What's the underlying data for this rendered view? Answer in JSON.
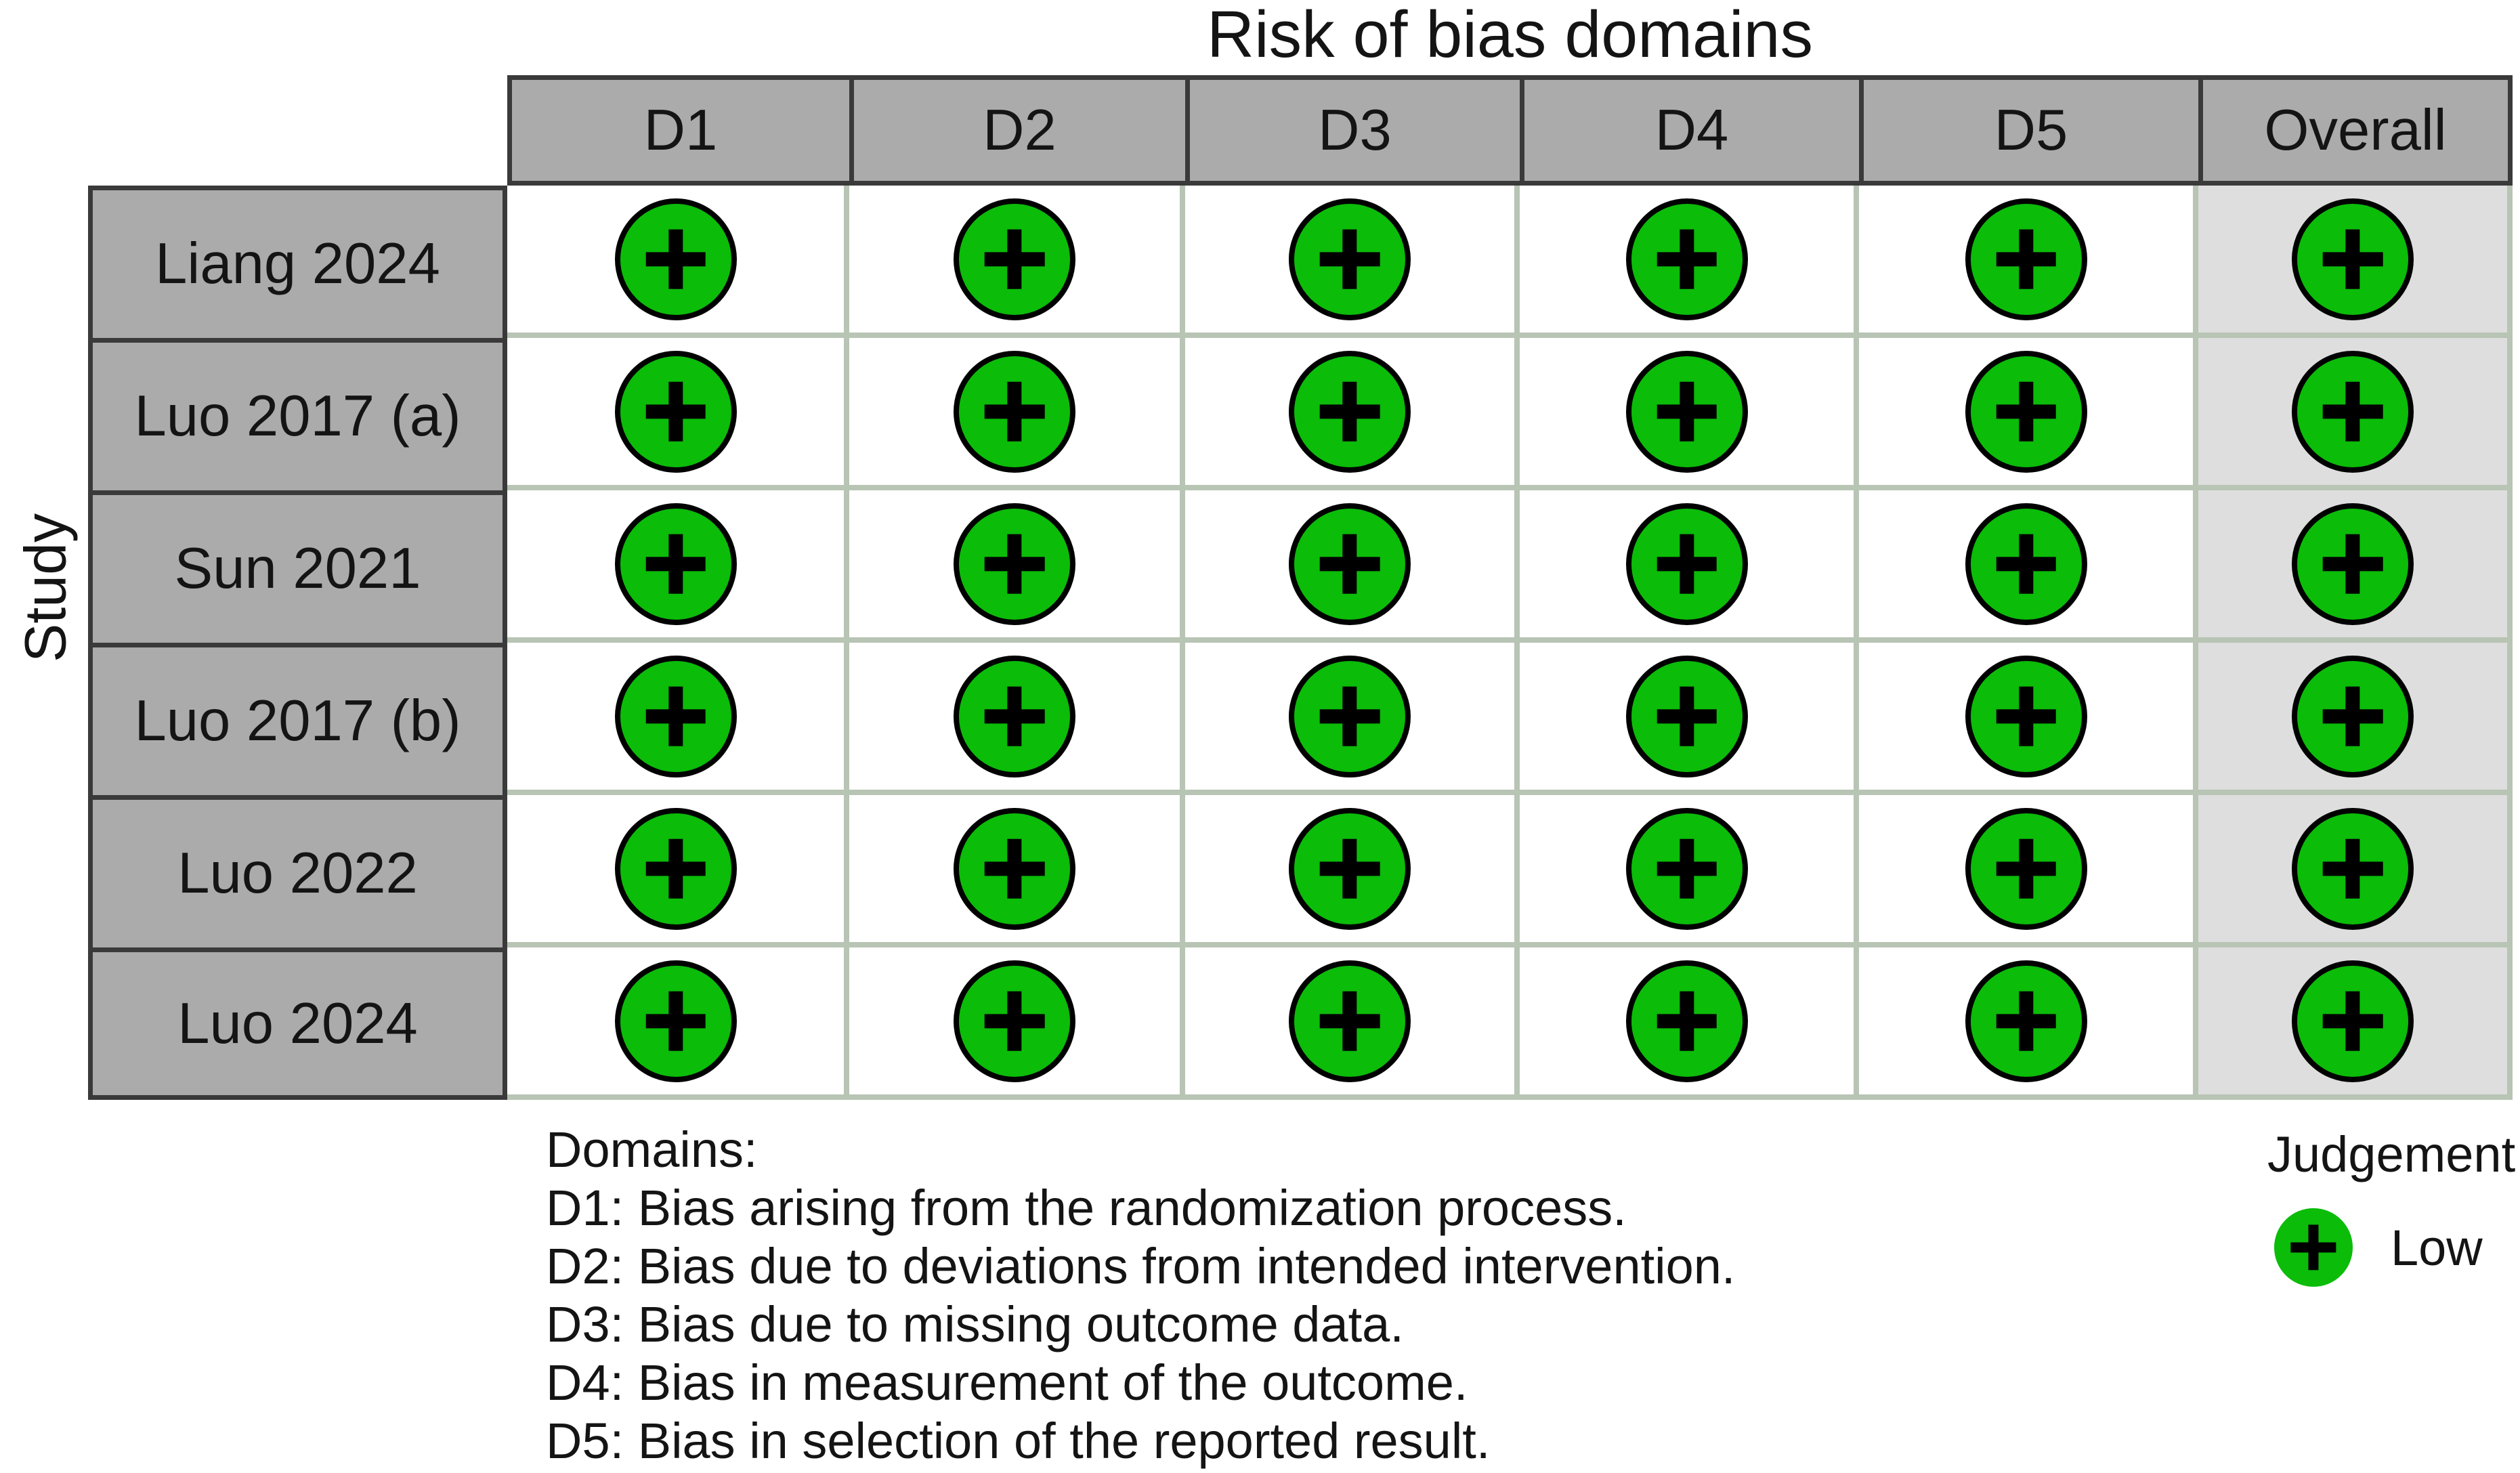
{
  "title": "Risk of bias domains",
  "y_axis_label": "Study",
  "chart_data": {
    "type": "heatmap",
    "title": "Risk of bias domains",
    "x_label": "Risk of bias domains",
    "y_label": "Study",
    "x_categories": [
      "D1",
      "D2",
      "D3",
      "D4",
      "D5",
      "Overall"
    ],
    "y_categories": [
      "Liang 2024",
      "Luo 2017 (a)",
      "Sun 2021",
      "Luo 2017 (b)",
      "Luo 2022",
      "Luo 2024"
    ],
    "values": [
      [
        "Low",
        "Low",
        "Low",
        "Low",
        "Low",
        "Low"
      ],
      [
        "Low",
        "Low",
        "Low",
        "Low",
        "Low",
        "Low"
      ],
      [
        "Low",
        "Low",
        "Low",
        "Low",
        "Low",
        "Low"
      ],
      [
        "Low",
        "Low",
        "Low",
        "Low",
        "Low",
        "Low"
      ],
      [
        "Low",
        "Low",
        "Low",
        "Low",
        "Low",
        "Low"
      ],
      [
        "Low",
        "Low",
        "Low",
        "Low",
        "Low",
        "Low"
      ]
    ],
    "symbol_map": {
      "Low": "+"
    },
    "legend_position": "bottom-right",
    "grid": true
  },
  "domains_legend": {
    "heading": "Domains:",
    "lines": [
      "D1: Bias arising from the randomization process.",
      "D2: Bias due to deviations from intended intervention.",
      "D3: Bias due to missing outcome data.",
      "D4: Bias in measurement of the outcome.",
      "D5: Bias in selection of the reported result."
    ]
  },
  "judgement_legend": {
    "title": "Judgement",
    "items": [
      {
        "label": "Low",
        "judgement": "low",
        "symbol": "+"
      }
    ]
  },
  "colors": {
    "low_green": "#0BBC09",
    "header_gray": "#ABABAB",
    "overall_gray": "#DEDEDE",
    "grid_line": "#B8C4B4",
    "dark_border": "#3A3A3A",
    "text_color": "#141414"
  }
}
